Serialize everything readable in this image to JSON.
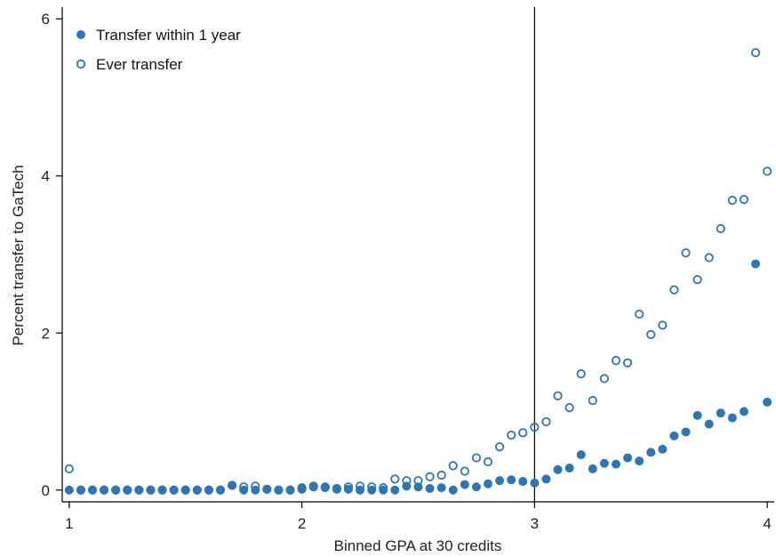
{
  "chart_data": {
    "type": "scatter",
    "title": "",
    "xlabel": "Binned GPA at 30 credits",
    "ylabel": "Percent transfer to GaTech",
    "xlim": [
      0.97,
      4.03
    ],
    "ylim": [
      -0.15,
      6.15
    ],
    "xticks": [
      1,
      2,
      3,
      4
    ],
    "yticks": [
      0,
      2,
      4,
      6
    ],
    "grid": false,
    "legend": "top-left",
    "vline": 3,
    "colors": {
      "series": "#2E75B6",
      "axis": "#000000"
    },
    "series": [
      {
        "name": "Transfer within 1 year",
        "marker": "filled-circle",
        "x": [
          1.0,
          1.05,
          1.1,
          1.15,
          1.2,
          1.25,
          1.3,
          1.35,
          1.4,
          1.45,
          1.5,
          1.55,
          1.6,
          1.65,
          1.7,
          1.75,
          1.8,
          1.85,
          1.9,
          1.95,
          2.0,
          2.05,
          2.1,
          2.15,
          2.2,
          2.25,
          2.3,
          2.35,
          2.4,
          2.45,
          2.5,
          2.55,
          2.6,
          2.65,
          2.7,
          2.75,
          2.8,
          2.85,
          2.9,
          2.95,
          3.0,
          3.05,
          3.1,
          3.15,
          3.2,
          3.25,
          3.3,
          3.35,
          3.4,
          3.45,
          3.5,
          3.55,
          3.6,
          3.65,
          3.7,
          3.75,
          3.8,
          3.85,
          3.9,
          3.95,
          4.0
        ],
        "y": [
          0,
          0,
          0,
          0,
          0,
          0,
          0,
          0,
          0,
          0,
          0,
          0,
          0,
          0,
          0.06,
          0,
          0,
          0.01,
          0,
          0,
          0.01,
          0.04,
          0.03,
          0.01,
          0.01,
          0,
          0,
          0,
          0,
          0.05,
          0.04,
          0.02,
          0.03,
          0,
          0.07,
          0.04,
          0.08,
          0.12,
          0.13,
          0.11,
          0.09,
          0.14,
          0.26,
          0.28,
          0.45,
          0.27,
          0.34,
          0.33,
          0.41,
          0.37,
          0.48,
          0.52,
          0.69,
          0.74,
          0.95,
          0.84,
          0.98,
          0.92,
          1.0,
          2.88,
          1.12
        ]
      },
      {
        "name": "Ever transfer",
        "marker": "hollow-circle",
        "x": [
          1.0,
          1.05,
          1.1,
          1.15,
          1.2,
          1.25,
          1.3,
          1.35,
          1.4,
          1.45,
          1.5,
          1.55,
          1.6,
          1.65,
          1.7,
          1.75,
          1.8,
          1.85,
          1.9,
          1.95,
          2.0,
          2.05,
          2.1,
          2.15,
          2.2,
          2.25,
          2.3,
          2.35,
          2.4,
          2.45,
          2.5,
          2.55,
          2.6,
          2.65,
          2.7,
          2.75,
          2.8,
          2.85,
          2.9,
          2.95,
          3.0,
          3.05,
          3.1,
          3.15,
          3.2,
          3.25,
          3.3,
          3.35,
          3.4,
          3.45,
          3.5,
          3.55,
          3.6,
          3.65,
          3.7,
          3.75,
          3.8,
          3.85,
          3.9,
          3.95,
          4.0
        ],
        "y": [
          0.27,
          0,
          0,
          0,
          0,
          0,
          0,
          0,
          0,
          0,
          0,
          0,
          0,
          0,
          0.06,
          0.04,
          0.05,
          0.01,
          0,
          0,
          0.03,
          0.05,
          0.04,
          0.02,
          0.04,
          0.05,
          0.04,
          0.03,
          0.14,
          0.12,
          0.12,
          0.17,
          0.19,
          0.31,
          0.24,
          0.41,
          0.36,
          0.55,
          0.7,
          0.73,
          0.8,
          0.87,
          1.2,
          1.05,
          1.48,
          1.14,
          1.42,
          1.65,
          1.62,
          2.24,
          1.98,
          2.1,
          2.55,
          3.02,
          2.68,
          2.96,
          3.33,
          3.69,
          3.7,
          5.57,
          4.06
        ]
      }
    ]
  }
}
